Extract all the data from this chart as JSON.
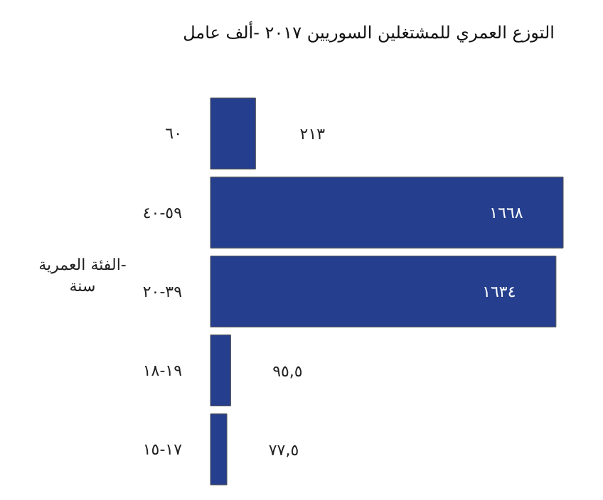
{
  "chart_data": {
    "type": "bar",
    "orientation": "horizontal",
    "title": "التوزع العمري للمشتغلين السوريين ٢٠١٧ -ألف عامل",
    "ylabel": "الفئة العمرية- سنة",
    "categories": [
      "٦٠",
      "٤٠-٥٩",
      "٢٠-٣٩",
      "١٨-١٩",
      "١٥-١٧"
    ],
    "values": [
      213,
      1668,
      1634,
      95.5,
      77.5
    ],
    "value_labels": [
      "٢١٣",
      "١٦٦٨",
      "١٦٣٤",
      "٩٥,٥",
      "٧٧,٥"
    ],
    "color": "#253f8e",
    "grid": false,
    "legend": false
  }
}
